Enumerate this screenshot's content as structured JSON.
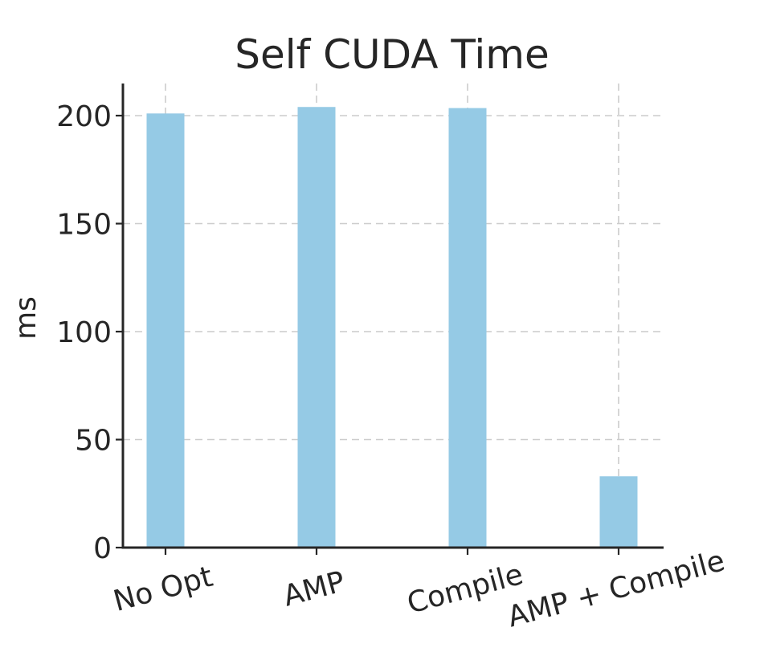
{
  "chart_data": {
    "type": "bar",
    "title": "Self CUDA Time",
    "xlabel": "",
    "ylabel": "ms",
    "categories": [
      "No Opt",
      "AMP",
      "Compile",
      "AMP + Compile"
    ],
    "values": [
      201,
      204,
      203.5,
      33
    ],
    "ylim": [
      0,
      215
    ],
    "yticks": [
      0,
      50,
      100,
      150,
      200
    ],
    "ytick_labels": [
      "0",
      "50",
      "100",
      "150",
      "200"
    ],
    "bar_color": "#95cae5",
    "grid": true,
    "grid_style": "dashed",
    "xtick_rotation": "-15deg"
  }
}
